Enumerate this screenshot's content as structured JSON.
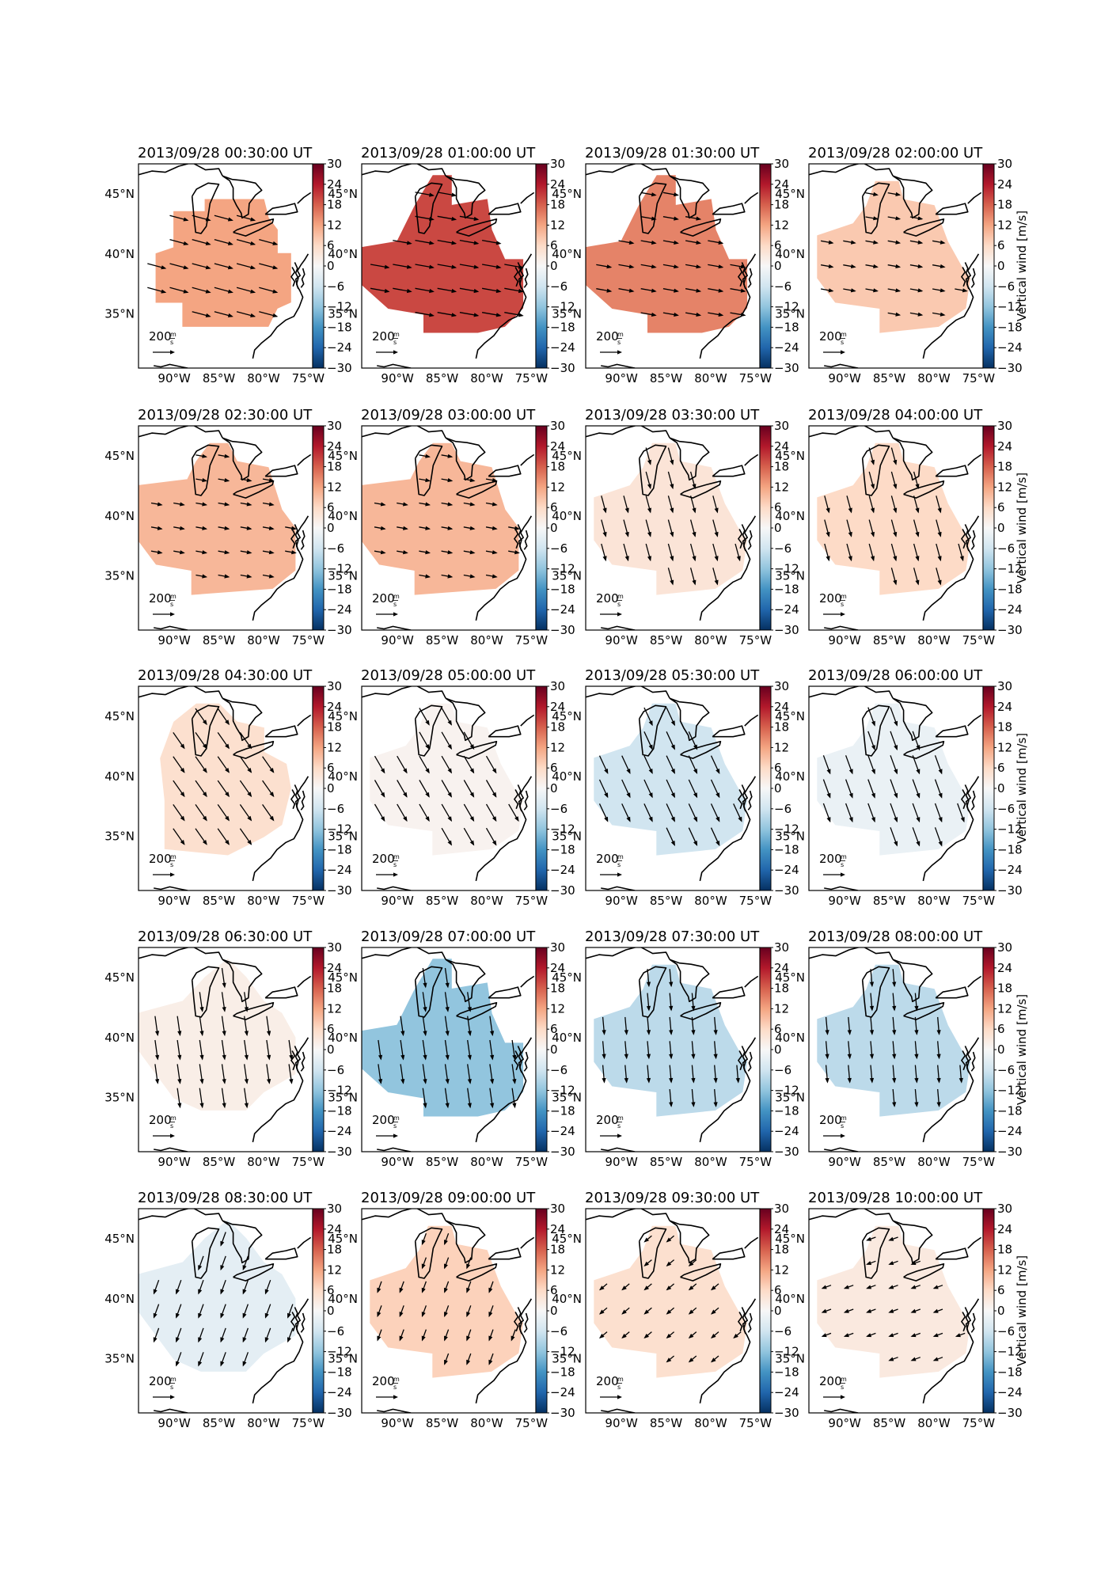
{
  "figure": {
    "lat_labels": [
      "45°N",
      "40°N",
      "35°N"
    ],
    "lon_labels": [
      "90°W",
      "85°W",
      "80°W",
      "75°W"
    ],
    "colorbar": {
      "ticks": [
        "30",
        "24",
        "18",
        "12",
        "6",
        "0",
        "−6",
        "−12",
        "−18",
        "−24",
        "−30"
      ],
      "label": "Vertical wind [m/s]",
      "cmap": "RdBu_r",
      "range": [
        -30,
        30
      ],
      "colors": [
        "#053061",
        "#2166ac",
        "#4393c3",
        "#92c5de",
        "#d1e5f0",
        "#f7f7f7",
        "#fddbc7",
        "#f4a582",
        "#d6604d",
        "#b2182b",
        "#67001f"
      ]
    },
    "scale_arrow": {
      "value": "200",
      "unit": "m/s",
      "num": "m",
      "den": "s"
    },
    "map_extent": {
      "lon": [
        -94,
        -74.5
      ],
      "lat": [
        30.5,
        47.5
      ]
    },
    "panels": [
      {
        "title": "2013/09/28 00:30:00 UT",
        "vertical_wind": 12,
        "wind_dir_deg": 105,
        "wind_len": 0.85,
        "region": "A"
      },
      {
        "title": "2013/09/28 01:00:00 UT",
        "vertical_wind": 20,
        "wind_dir_deg": 100,
        "wind_len": 0.85,
        "region": "B"
      },
      {
        "title": "2013/09/28 01:30:00 UT",
        "vertical_wind": 15,
        "wind_dir_deg": 100,
        "wind_len": 0.6,
        "region": "B"
      },
      {
        "title": "2013/09/28 02:00:00 UT",
        "vertical_wind": 8,
        "wind_dir_deg": 100,
        "wind_len": 0.4,
        "region": "C"
      },
      {
        "title": "2013/09/28 02:30:00 UT",
        "vertical_wind": 10,
        "wind_dir_deg": 100,
        "wind_len": 0.3,
        "region": "D"
      },
      {
        "title": "2013/09/28 03:00:00 UT",
        "vertical_wind": 10,
        "wind_dir_deg": 100,
        "wind_len": 0.3,
        "region": "D"
      },
      {
        "title": "2013/09/28 03:30:00 UT",
        "vertical_wind": 4,
        "wind_dir_deg": 165,
        "wind_len": 0.75,
        "region": "C"
      },
      {
        "title": "2013/09/28 04:00:00 UT",
        "vertical_wind": 6,
        "wind_dir_deg": 165,
        "wind_len": 0.75,
        "region": "C"
      },
      {
        "title": "2013/09/28 04:30:00 UT",
        "vertical_wind": 5,
        "wind_dir_deg": 145,
        "wind_len": 0.9,
        "region": "E"
      },
      {
        "title": "2013/09/28 05:00:00 UT",
        "vertical_wind": 1,
        "wind_dir_deg": 150,
        "wind_len": 0.9,
        "region": "C"
      },
      {
        "title": "2013/09/28 05:30:00 UT",
        "vertical_wind": -6,
        "wind_dir_deg": 155,
        "wind_len": 0.9,
        "region": "C"
      },
      {
        "title": "2013/09/28 06:00:00 UT",
        "vertical_wind": -2,
        "wind_dir_deg": 160,
        "wind_len": 0.9,
        "region": "C"
      },
      {
        "title": "2013/09/28 06:30:00 UT",
        "vertical_wind": 2,
        "wind_dir_deg": 172,
        "wind_len": 0.9,
        "region": "F"
      },
      {
        "title": "2013/09/28 07:00:00 UT",
        "vertical_wind": -12,
        "wind_dir_deg": 172,
        "wind_len": 0.9,
        "region": "B"
      },
      {
        "title": "2013/09/28 07:30:00 UT",
        "vertical_wind": -8,
        "wind_dir_deg": 175,
        "wind_len": 0.75,
        "region": "C"
      },
      {
        "title": "2013/09/28 08:00:00 UT",
        "vertical_wind": -8,
        "wind_dir_deg": 175,
        "wind_len": 0.75,
        "region": "C"
      },
      {
        "title": "2013/09/28 08:30:00 UT",
        "vertical_wind": -3,
        "wind_dir_deg": 200,
        "wind_len": 0.55,
        "region": "F"
      },
      {
        "title": "2013/09/28 09:00:00 UT",
        "vertical_wind": 7,
        "wind_dir_deg": 200,
        "wind_len": 0.35,
        "region": "C"
      },
      {
        "title": "2013/09/28 09:30:00 UT",
        "vertical_wind": 5,
        "wind_dir_deg": 230,
        "wind_len": 0.2,
        "region": "C"
      },
      {
        "title": "2013/09/28 10:00:00 UT",
        "vertical_wind": 3,
        "wind_dir_deg": 250,
        "wind_len": 0.2,
        "region": "C"
      }
    ]
  }
}
